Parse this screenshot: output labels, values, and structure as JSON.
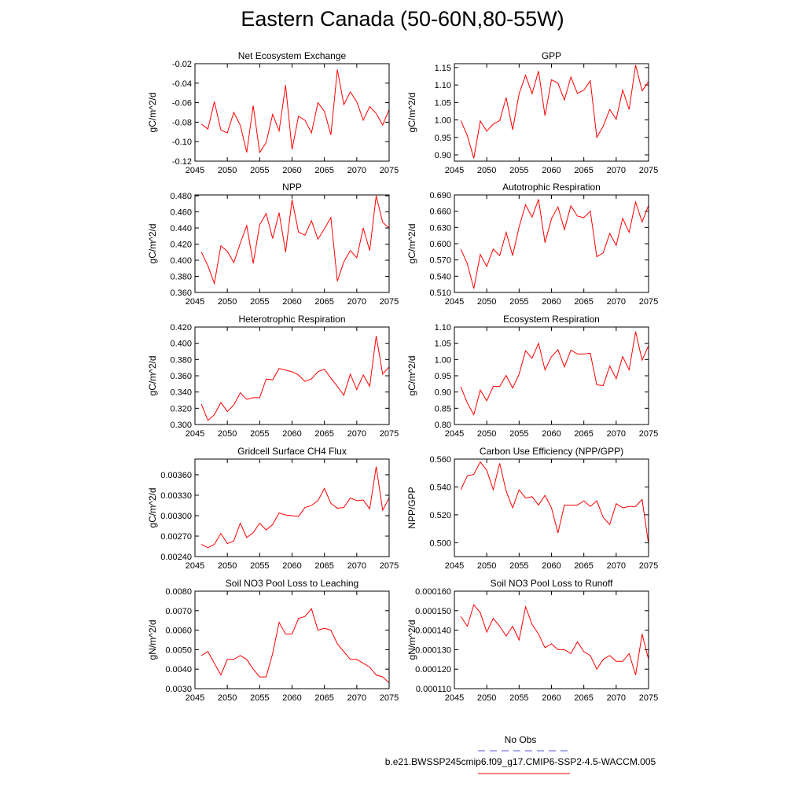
{
  "title": "Eastern Canada (50-60N,80-55W)",
  "legend": [
    {
      "name": "No Obs",
      "color": "#5555dd",
      "dashed": true
    },
    {
      "name": "b.e21.BWSSP245cmip6.f09_g17.CMIP6-SSP2-4.5-WACCM.005",
      "color": "#ff0000",
      "dashed": false
    }
  ],
  "chart_data": [
    {
      "type": "line",
      "title": "Net Ecosystem Exchange",
      "y_label": "gC/m^2/d",
      "color": "#ff0000",
      "x": [
        2046,
        2047,
        2048,
        2049,
        2050,
        2051,
        2052,
        2053,
        2054,
        2055,
        2056,
        2057,
        2058,
        2059,
        2060,
        2061,
        2062,
        2063,
        2064,
        2065,
        2066,
        2067,
        2068,
        2069,
        2070,
        2071,
        2072,
        2073,
        2074,
        2075
      ],
      "values": [
        -0.082,
        -0.087,
        -0.059,
        -0.088,
        -0.091,
        -0.07,
        -0.083,
        -0.111,
        -0.063,
        -0.111,
        -0.101,
        -0.072,
        -0.089,
        -0.042,
        -0.108,
        -0.074,
        -0.078,
        -0.091,
        -0.06,
        -0.069,
        -0.093,
        -0.026,
        -0.062,
        -0.049,
        -0.059,
        -0.078,
        -0.064,
        -0.071,
        -0.083,
        -0.067
      ],
      "xlim": [
        2045,
        2075
      ],
      "xticks": [
        2045,
        2050,
        2055,
        2060,
        2065,
        2070,
        2075
      ],
      "ylim": [
        -0.12,
        -0.02
      ],
      "yticks": [
        -0.12,
        {
          "value": -0.1,
          "label": "-0.10"
        },
        -0.08,
        -0.06,
        -0.04,
        -0.02
      ]
    },
    {
      "type": "line",
      "title": "GPP",
      "y_label": "gC/m^2/d",
      "color": "#ff0000",
      "x": [
        2046,
        2047,
        2048,
        2049,
        2050,
        2051,
        2052,
        2053,
        2054,
        2055,
        2056,
        2057,
        2058,
        2059,
        2060,
        2061,
        2062,
        2063,
        2064,
        2065,
        2066,
        2067,
        2068,
        2069,
        2070,
        2071,
        2072,
        2073,
        2074,
        2075
      ],
      "values": [
        0.998,
        0.955,
        0.89,
        0.997,
        0.968,
        0.988,
        0.998,
        1.064,
        0.972,
        1.075,
        1.128,
        1.075,
        1.14,
        1.012,
        1.115,
        1.105,
        1.057,
        1.123,
        1.076,
        1.085,
        1.112,
        0.95,
        0.982,
        1.03,
        1.002,
        1.086,
        1.03,
        1.157,
        1.083,
        1.11
      ],
      "xlim": [
        2045,
        2075
      ],
      "xticks": [
        2045,
        2050,
        2055,
        2060,
        2065,
        2070,
        2075
      ],
      "ylim": [
        0.882,
        1.161
      ],
      "yticks": [
        {
          "value": 0.9,
          "label": "0.90"
        },
        0.95,
        {
          "value": 1.0,
          "label": "1.00"
        },
        1.05,
        {
          "value": 1.1,
          "label": "1.10"
        },
        1.15
      ]
    },
    {
      "type": "line",
      "title": "NPP",
      "y_label": "gC/m^2/d",
      "color": "#ff0000",
      "x": [
        2046,
        2047,
        2048,
        2049,
        2050,
        2051,
        2052,
        2053,
        2054,
        2055,
        2056,
        2057,
        2058,
        2059,
        2060,
        2061,
        2062,
        2063,
        2064,
        2065,
        2066,
        2067,
        2068,
        2069,
        2070,
        2071,
        2072,
        2073,
        2074,
        2075
      ],
      "values": [
        0.41,
        0.393,
        0.371,
        0.418,
        0.411,
        0.397,
        0.421,
        0.443,
        0.396,
        0.444,
        0.458,
        0.427,
        0.459,
        0.41,
        0.475,
        0.435,
        0.431,
        0.449,
        0.426,
        0.439,
        0.453,
        0.374,
        0.398,
        0.412,
        0.403,
        0.44,
        0.412,
        0.48,
        0.447,
        0.44
      ],
      "xlim": [
        2045,
        2075
      ],
      "xticks": [
        2045,
        2050,
        2055,
        2060,
        2065,
        2070,
        2075
      ],
      "ylim": [
        0.36,
        0.481
      ],
      "yticks": [
        {
          "value": 0.36,
          "label": "0.360"
        },
        {
          "value": 0.38,
          "label": "0.380"
        },
        {
          "value": 0.4,
          "label": "0.400"
        },
        {
          "value": 0.42,
          "label": "0.420"
        },
        {
          "value": 0.44,
          "label": "0.440"
        },
        {
          "value": 0.46,
          "label": "0.460"
        },
        {
          "value": 0.48,
          "label": "0.480"
        }
      ]
    },
    {
      "type": "line",
      "title": "Autotrophic Respiration",
      "y_label": "gC/m^2/d",
      "color": "#ff0000",
      "x": [
        2046,
        2047,
        2048,
        2049,
        2050,
        2051,
        2052,
        2053,
        2054,
        2055,
        2056,
        2057,
        2058,
        2059,
        2060,
        2061,
        2062,
        2063,
        2064,
        2065,
        2066,
        2067,
        2068,
        2069,
        2070,
        2071,
        2072,
        2073,
        2074,
        2075
      ],
      "values": [
        0.59,
        0.563,
        0.517,
        0.58,
        0.558,
        0.59,
        0.578,
        0.621,
        0.578,
        0.631,
        0.672,
        0.649,
        0.682,
        0.602,
        0.646,
        0.668,
        0.626,
        0.67,
        0.651,
        0.648,
        0.66,
        0.576,
        0.583,
        0.619,
        0.597,
        0.647,
        0.621,
        0.677,
        0.64,
        0.671
      ],
      "xlim": [
        2045,
        2075
      ],
      "xticks": [
        2045,
        2050,
        2055,
        2060,
        2065,
        2070,
        2075
      ],
      "ylim": [
        0.51,
        0.69
      ],
      "yticks": [
        {
          "value": 0.51,
          "label": "0.510"
        },
        {
          "value": 0.54,
          "label": "0.540"
        },
        {
          "value": 0.57,
          "label": "0.570"
        },
        {
          "value": 0.6,
          "label": "0.600"
        },
        {
          "value": 0.63,
          "label": "0.630"
        },
        {
          "value": 0.66,
          "label": "0.660"
        },
        {
          "value": 0.69,
          "label": "0.690"
        }
      ]
    },
    {
      "type": "line",
      "title": "Heterotrophic Respiration",
      "y_label": "gC/m^2/d",
      "color": "#ff0000",
      "x": [
        2046,
        2047,
        2048,
        2049,
        2050,
        2051,
        2052,
        2053,
        2054,
        2055,
        2056,
        2057,
        2058,
        2059,
        2060,
        2061,
        2062,
        2063,
        2064,
        2065,
        2066,
        2067,
        2068,
        2069,
        2070,
        2071,
        2072,
        2073,
        2074,
        2075
      ],
      "values": [
        0.325,
        0.305,
        0.312,
        0.327,
        0.316,
        0.324,
        0.339,
        0.331,
        0.333,
        0.333,
        0.356,
        0.355,
        0.369,
        0.367,
        0.365,
        0.361,
        0.353,
        0.356,
        0.365,
        0.368,
        0.357,
        0.347,
        0.336,
        0.362,
        0.343,
        0.361,
        0.347,
        0.409,
        0.362,
        0.371
      ],
      "xlim": [
        2045,
        2075
      ],
      "xticks": [
        2045,
        2050,
        2055,
        2060,
        2065,
        2070,
        2075
      ],
      "ylim": [
        0.3,
        0.42
      ],
      "yticks": [
        {
          "value": 0.3,
          "label": "0.300"
        },
        {
          "value": 0.32,
          "label": "0.320"
        },
        {
          "value": 0.34,
          "label": "0.340"
        },
        {
          "value": 0.36,
          "label": "0.360"
        },
        {
          "value": 0.38,
          "label": "0.380"
        },
        {
          "value": 0.4,
          "label": "0.400"
        },
        {
          "value": 0.42,
          "label": "0.420"
        }
      ]
    },
    {
      "type": "line",
      "title": "Ecosystem Respiration",
      "y_label": "gC/m^2/d",
      "color": "#ff0000",
      "x": [
        2046,
        2047,
        2048,
        2049,
        2050,
        2051,
        2052,
        2053,
        2054,
        2055,
        2056,
        2057,
        2058,
        2059,
        2060,
        2061,
        2062,
        2063,
        2064,
        2065,
        2066,
        2067,
        2068,
        2069,
        2070,
        2071,
        2072,
        2073,
        2074,
        2075
      ],
      "values": [
        0.916,
        0.866,
        0.83,
        0.906,
        0.873,
        0.917,
        0.917,
        0.951,
        0.912,
        0.955,
        1.027,
        1.004,
        1.05,
        0.968,
        1.009,
        1.03,
        0.977,
        1.029,
        1.017,
        1.017,
        1.019,
        0.922,
        0.92,
        0.98,
        0.941,
        1.009,
        0.968,
        1.086,
        0.998,
        1.043
      ],
      "xlim": [
        2045,
        2075
      ],
      "xticks": [
        2045,
        2050,
        2055,
        2060,
        2065,
        2070,
        2075
      ],
      "ylim": [
        0.8,
        1.1
      ],
      "yticks": [
        {
          "value": 0.8,
          "label": "0.80"
        },
        0.85,
        {
          "value": 0.9,
          "label": "0.90"
        },
        0.95,
        {
          "value": 1.0,
          "label": "1.00"
        },
        1.05,
        {
          "value": 1.1,
          "label": "1.10"
        }
      ]
    },
    {
      "type": "line",
      "title": "Gridcell Surface CH4 Flux",
      "y_label": "gC/m^2/d",
      "color": "#ff0000",
      "x": [
        2046,
        2047,
        2048,
        2049,
        2050,
        2051,
        2052,
        2053,
        2054,
        2055,
        2056,
        2057,
        2058,
        2059,
        2060,
        2061,
        2062,
        2063,
        2064,
        2065,
        2066,
        2067,
        2068,
        2069,
        2070,
        2071,
        2072,
        2073,
        2074,
        2075
      ],
      "values": [
        0.00258,
        0.00253,
        0.00258,
        0.00274,
        0.00259,
        0.00263,
        0.00289,
        0.00268,
        0.00275,
        0.00289,
        0.00279,
        0.00287,
        0.00304,
        0.00301,
        0.003,
        0.00299,
        0.00312,
        0.00315,
        0.00322,
        0.0034,
        0.00318,
        0.00311,
        0.00312,
        0.00326,
        0.00322,
        0.00323,
        0.0031,
        0.00372,
        0.00308,
        0.00326
      ],
      "xlim": [
        2045,
        2075
      ],
      "xticks": [
        2045,
        2050,
        2055,
        2060,
        2065,
        2070,
        2075
      ],
      "ylim": [
        0.0024,
        0.00383
      ],
      "yticks": [
        {
          "value": 0.0024,
          "label": "0.00240"
        },
        {
          "value": 0.0027,
          "label": "0.00270"
        },
        {
          "value": 0.003,
          "label": "0.00300"
        },
        {
          "value": 0.0033,
          "label": "0.00330"
        },
        {
          "value": 0.0036,
          "label": "0.00360"
        }
      ]
    },
    {
      "type": "line",
      "title": "Carbon Use Efficiency (NPP/GPP)",
      "y_label": "NPP/GPP",
      "color": "#ff0000",
      "x": [
        2046,
        2047,
        2048,
        2049,
        2050,
        2051,
        2052,
        2053,
        2054,
        2055,
        2056,
        2057,
        2058,
        2059,
        2060,
        2061,
        2062,
        2063,
        2064,
        2065,
        2066,
        2067,
        2068,
        2069,
        2070,
        2071,
        2072,
        2073,
        2074,
        2075
      ],
      "values": [
        0.538,
        0.548,
        0.549,
        0.558,
        0.552,
        0.538,
        0.557,
        0.537,
        0.525,
        0.538,
        0.532,
        0.533,
        0.527,
        0.534,
        0.525,
        0.507,
        0.527,
        0.527,
        0.527,
        0.53,
        0.526,
        0.53,
        0.518,
        0.513,
        0.528,
        0.525,
        0.526,
        0.526,
        0.531,
        0.499
      ],
      "xlim": [
        2045,
        2075
      ],
      "xticks": [
        2045,
        2050,
        2055,
        2060,
        2065,
        2070,
        2075
      ],
      "ylim": [
        0.49,
        0.56
      ],
      "yticks": [
        {
          "value": 0.5,
          "label": "0.500"
        },
        {
          "value": 0.52,
          "label": "0.520"
        },
        {
          "value": 0.54,
          "label": "0.540"
        },
        {
          "value": 0.56,
          "label": "0.560"
        }
      ]
    },
    {
      "type": "line",
      "title": "Soil NO3 Pool Loss to Leaching",
      "y_label": "gN/m^2/d",
      "color": "#ff0000",
      "x": [
        2046,
        2047,
        2048,
        2049,
        2050,
        2051,
        2052,
        2053,
        2054,
        2055,
        2056,
        2057,
        2058,
        2059,
        2060,
        2061,
        2062,
        2063,
        2064,
        2065,
        2066,
        2067,
        2068,
        2069,
        2070,
        2071,
        2072,
        2073,
        2074,
        2075
      ],
      "values": [
        0.0047,
        0.0049,
        0.0043,
        0.0037,
        0.0045,
        0.0045,
        0.0047,
        0.0045,
        0.004,
        0.0036,
        0.0036,
        0.0048,
        0.0064,
        0.0058,
        0.0058,
        0.0066,
        0.0067,
        0.0071,
        0.006,
        0.0061,
        0.006,
        0.0053,
        0.0049,
        0.0045,
        0.0045,
        0.0043,
        0.0041,
        0.0037,
        0.0036,
        0.0033
      ],
      "xlim": [
        2045,
        2075
      ],
      "xticks": [
        2045,
        2050,
        2055,
        2060,
        2065,
        2070,
        2075
      ],
      "ylim": [
        0.003,
        0.008
      ],
      "yticks": [
        {
          "value": 0.003,
          "label": "0.0030"
        },
        {
          "value": 0.004,
          "label": "0.0040"
        },
        {
          "value": 0.005,
          "label": "0.0050"
        },
        {
          "value": 0.006,
          "label": "0.0060"
        },
        {
          "value": 0.007,
          "label": "0.0070"
        },
        {
          "value": 0.008,
          "label": "0.0080"
        }
      ]
    },
    {
      "type": "line",
      "title": "Soil NO3 Pool Loss to Runoff",
      "y_label": "gN/m^2/d",
      "color": "#ff0000",
      "x": [
        2046,
        2047,
        2048,
        2049,
        2050,
        2051,
        2052,
        2053,
        2054,
        2055,
        2056,
        2057,
        2058,
        2059,
        2060,
        2061,
        2062,
        2063,
        2064,
        2065,
        2066,
        2067,
        2068,
        2069,
        2070,
        2071,
        2072,
        2073,
        2074,
        2075
      ],
      "values": [
        0.000147,
        0.000142,
        0.000153,
        0.000149,
        0.000139,
        0.000146,
        0.000142,
        0.000137,
        0.000142,
        0.000135,
        0.000152,
        0.000143,
        0.000138,
        0.000131,
        0.000133,
        0.00013,
        0.00013,
        0.000128,
        0.000134,
        0.000129,
        0.000127,
        0.00012,
        0.000125,
        0.000127,
        0.000124,
        0.000124,
        0.000128,
        0.000117,
        0.000138,
        0.000125
      ],
      "xlim": [
        2045,
        2075
      ],
      "xticks": [
        2045,
        2050,
        2055,
        2060,
        2065,
        2070,
        2075
      ],
      "ylim": [
        0.00011,
        0.00016
      ],
      "yticks": [
        {
          "value": 0.00011,
          "label": "0.000110"
        },
        {
          "value": 0.00012,
          "label": "0.000120"
        },
        {
          "value": 0.00013,
          "label": "0.000130"
        },
        {
          "value": 0.00014,
          "label": "0.000140"
        },
        {
          "value": 0.00015,
          "label": "0.000150"
        },
        {
          "value": 0.00016,
          "label": "0.000160"
        }
      ]
    }
  ]
}
